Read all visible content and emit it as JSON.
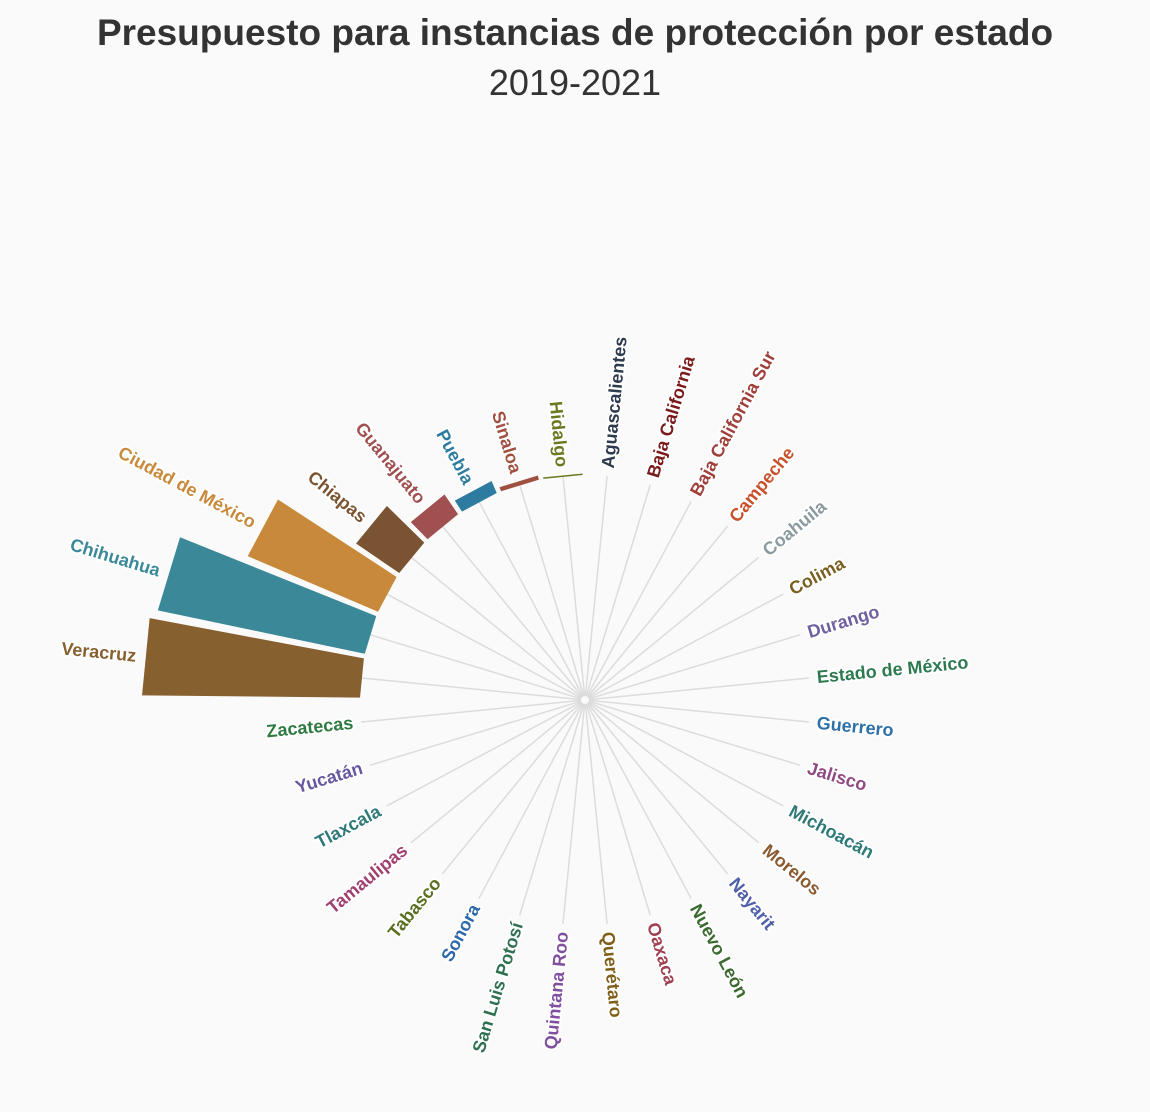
{
  "chart_data": {
    "type": "radial-bar",
    "title": "Presupuesto para instancias de protección por estado",
    "subtitle": "2019-2021",
    "value_note": "relative budget, estimated from bar lengths (max = 100)",
    "categories": [
      {
        "name": "Aguascalientes",
        "value": 0,
        "color": "#2e3a4e"
      },
      {
        "name": "Baja California",
        "value": 0,
        "color": "#7a1a1a"
      },
      {
        "name": "Baja California Sur",
        "value": 0,
        "color": "#a0403a"
      },
      {
        "name": "Campeche",
        "value": 0,
        "color": "#c8502a"
      },
      {
        "name": "Coahuila",
        "value": 0,
        "color": "#8a9aa0"
      },
      {
        "name": "Colima",
        "value": 0,
        "color": "#7a6020"
      },
      {
        "name": "Durango",
        "value": 0,
        "color": "#7060a0"
      },
      {
        "name": "Estado de México",
        "value": 0,
        "color": "#2e7a50"
      },
      {
        "name": "Guerrero",
        "value": 0,
        "color": "#2e70a8"
      },
      {
        "name": "Jalisco",
        "value": 0,
        "color": "#904a80"
      },
      {
        "name": "Michoacán",
        "value": 0,
        "color": "#2e7a78"
      },
      {
        "name": "Morelos",
        "value": 0,
        "color": "#8a5a30"
      },
      {
        "name": "Nayarit",
        "value": 0,
        "color": "#5060a8"
      },
      {
        "name": "Nuevo León",
        "value": 0,
        "color": "#3a6a30"
      },
      {
        "name": "Oaxaca",
        "value": 0,
        "color": "#a04050"
      },
      {
        "name": "Querétaro",
        "value": 0,
        "color": "#806018"
      },
      {
        "name": "Quintana Roo",
        "value": 0,
        "color": "#8050a0"
      },
      {
        "name": "San Luis Potosí",
        "value": 0,
        "color": "#2e7050"
      },
      {
        "name": "Sonora",
        "value": 0,
        "color": "#2e68a8"
      },
      {
        "name": "Tabasco",
        "value": 0,
        "color": "#5a7020"
      },
      {
        "name": "Tamaulipas",
        "value": 0,
        "color": "#a04070"
      },
      {
        "name": "Tlaxcala",
        "value": 0,
        "color": "#2e7878"
      },
      {
        "name": "Yucatán",
        "value": 0,
        "color": "#6858a0"
      },
      {
        "name": "Zacatecas",
        "value": 0,
        "color": "#2e7a40"
      },
      {
        "name": "Veracruz",
        "value": 100,
        "color": "#876030"
      },
      {
        "name": "Chihuahua",
        "value": 97,
        "color": "#3a8898"
      },
      {
        "name": "Ciudad de México",
        "value": 65,
        "color": "#c8893a"
      },
      {
        "name": "Chiapas",
        "value": 24,
        "color": "#7a5432"
      },
      {
        "name": "Guanajuato",
        "value": 11,
        "color": "#a05050"
      },
      {
        "name": "Puebla",
        "value": 6,
        "color": "#2e7ba0"
      },
      {
        "name": "Sinaloa",
        "value": 2,
        "color": "#a05040"
      },
      {
        "name": "Hidalgo",
        "value": 0.5,
        "color": "#6a7a20"
      }
    ],
    "max": 100
  }
}
